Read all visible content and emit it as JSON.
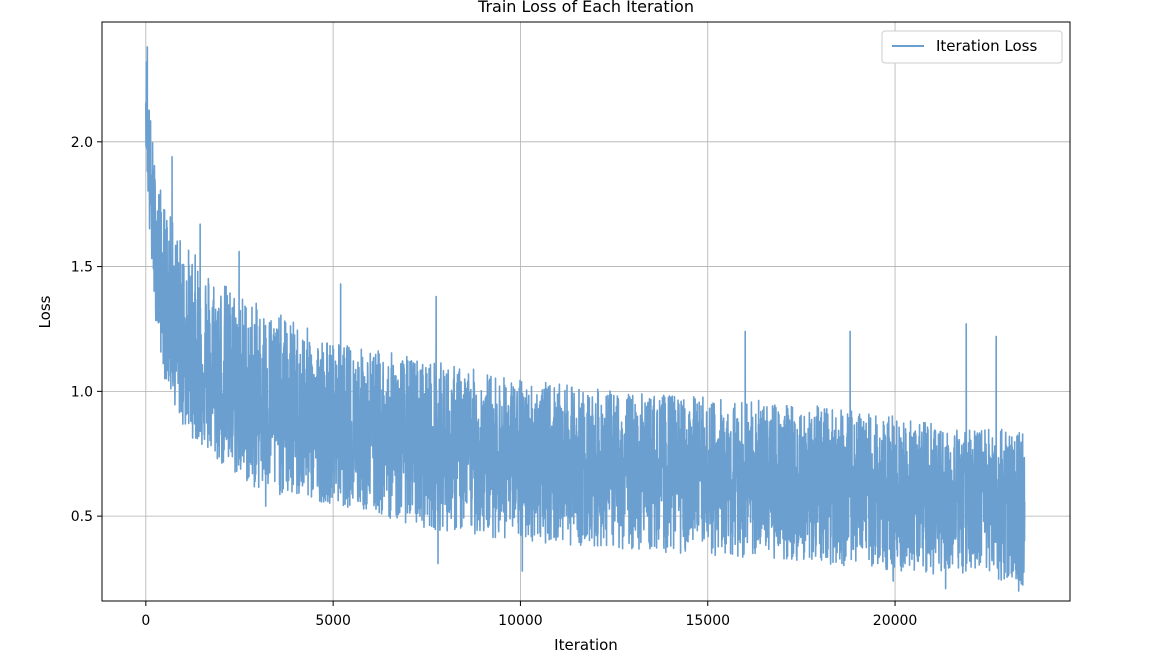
{
  "chart_data": {
    "type": "line",
    "title": "Train Loss of Each Iteration",
    "xlabel": "Iteration",
    "ylabel": "Loss",
    "xlim": [
      -1170,
      24670
    ],
    "ylim": [
      0.16,
      2.48
    ],
    "x_ticks": [
      0,
      5000,
      10000,
      15000,
      20000
    ],
    "x_tick_labels": [
      "0",
      "5000",
      "10000",
      "15000",
      "20000"
    ],
    "y_ticks": [
      0.5,
      1.0,
      1.5,
      2.0
    ],
    "y_tick_labels": [
      "0.5",
      "1.0",
      "1.5",
      "2.0"
    ],
    "grid": true,
    "legend_position": "upper right",
    "series": [
      {
        "name": "Iteration Loss",
        "color": "#6a9fcf",
        "x_range": [
          0,
          23460
        ],
        "mean_trend": {
          "x": [
            0,
            100,
            250,
            500,
            1000,
            2000,
            3000,
            4000,
            5000,
            7500,
            10000,
            12500,
            15000,
            17500,
            20000,
            22000,
            23460
          ],
          "y": [
            2.2,
            1.85,
            1.55,
            1.35,
            1.15,
            1.0,
            0.93,
            0.88,
            0.84,
            0.78,
            0.72,
            0.69,
            0.66,
            0.63,
            0.6,
            0.57,
            0.55
          ]
        },
        "upper_envelope": {
          "x": [
            0,
            100,
            250,
            500,
            1000,
            2000,
            3000,
            4000,
            5000,
            7500,
            10000,
            12500,
            15000,
            17500,
            20000,
            22000,
            23460
          ],
          "y": [
            2.38,
            2.15,
            1.9,
            1.75,
            1.6,
            1.45,
            1.35,
            1.28,
            1.2,
            1.13,
            1.05,
            1.0,
            0.98,
            0.95,
            0.9,
            0.85,
            0.85
          ]
        },
        "lower_envelope": {
          "x": [
            0,
            100,
            250,
            500,
            1000,
            2000,
            3000,
            4000,
            5000,
            7500,
            10000,
            12500,
            15000,
            17500,
            20000,
            22000,
            23460
          ],
          "y": [
            2.0,
            1.6,
            1.3,
            1.05,
            0.85,
            0.7,
            0.6,
            0.57,
            0.55,
            0.45,
            0.4,
            0.37,
            0.34,
            0.32,
            0.28,
            0.24,
            0.22
          ]
        },
        "notable_spikes": [
          {
            "x": 40,
            "y": 2.38
          },
          {
            "x": 700,
            "y": 1.94
          },
          {
            "x": 1450,
            "y": 1.67
          },
          {
            "x": 2490,
            "y": 1.56
          },
          {
            "x": 5200,
            "y": 1.43
          },
          {
            "x": 7750,
            "y": 1.38
          },
          {
            "x": 16000,
            "y": 1.24
          },
          {
            "x": 18800,
            "y": 1.24
          },
          {
            "x": 21900,
            "y": 1.27
          },
          {
            "x": 22700,
            "y": 1.22
          }
        ],
        "notable_dips": [
          {
            "x": 3200,
            "y": 0.54
          },
          {
            "x": 7800,
            "y": 0.31
          },
          {
            "x": 10050,
            "y": 0.28
          },
          {
            "x": 19950,
            "y": 0.24
          },
          {
            "x": 21350,
            "y": 0.21
          },
          {
            "x": 23300,
            "y": 0.2
          }
        ]
      }
    ]
  }
}
